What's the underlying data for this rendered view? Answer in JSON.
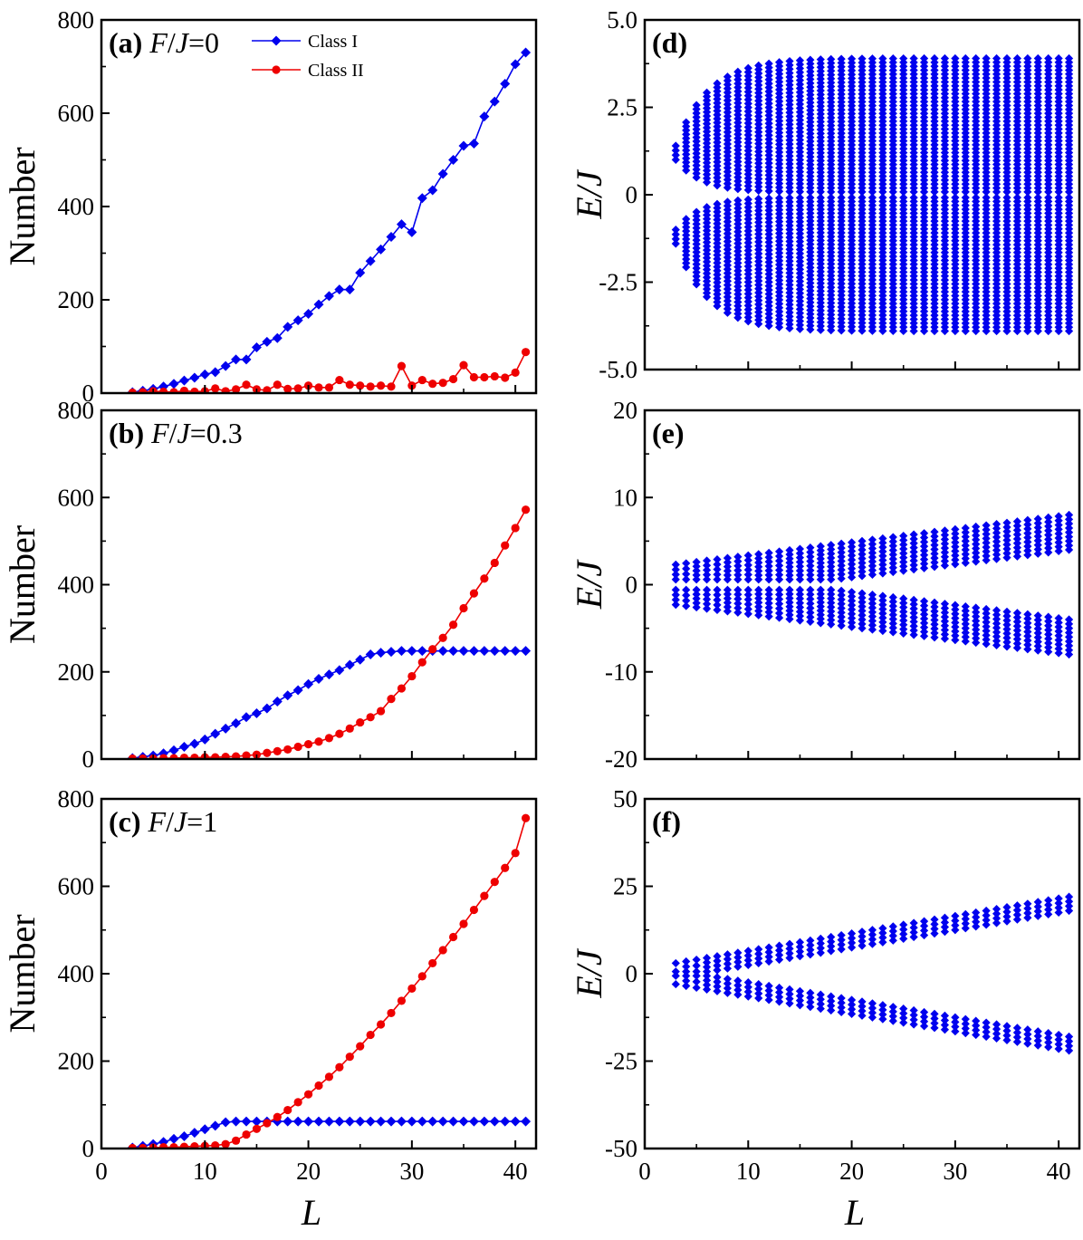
{
  "colors": {
    "class_I": "#0000ee",
    "class_II": "#ee0000",
    "spectrum": "#0000ee",
    "axes": "#000000"
  },
  "chart_data": [
    {
      "panel": "a",
      "type": "line",
      "param_label": "(a)",
      "param_text": "F/J=0",
      "ylabel": "Number",
      "xlim": [
        0,
        42
      ],
      "ylim": [
        0,
        800
      ],
      "xticks": [
        0,
        10,
        20,
        30,
        40
      ],
      "yticks": [
        0,
        200,
        400,
        600,
        800
      ],
      "legend": {
        "placement": "top-center",
        "entries": [
          "Class I",
          "Class II"
        ]
      },
      "x": [
        3,
        4,
        5,
        6,
        7,
        8,
        9,
        10,
        11,
        12,
        13,
        14,
        15,
        16,
        17,
        18,
        19,
        20,
        21,
        22,
        23,
        24,
        25,
        26,
        27,
        28,
        29,
        30,
        31,
        32,
        33,
        34,
        35,
        36,
        37,
        38,
        39,
        40,
        41
      ],
      "series": [
        {
          "name": "Class I",
          "marker": "diamond",
          "values": [
            2,
            5,
            9,
            14,
            20,
            27,
            33,
            40,
            45,
            58,
            72,
            72,
            98,
            110,
            118,
            142,
            156,
            170,
            190,
            208,
            222,
            222,
            258,
            283,
            308,
            335,
            362,
            345,
            418,
            435,
            470,
            500,
            530,
            535,
            593,
            625,
            663,
            705,
            730
          ]
        },
        {
          "name": "Class II",
          "marker": "circle",
          "values": [
            1,
            2,
            4,
            3,
            2,
            5,
            3,
            4,
            10,
            4,
            8,
            18,
            8,
            6,
            18,
            9,
            10,
            16,
            12,
            12,
            28,
            18,
            16,
            14,
            16,
            14,
            58,
            16,
            28,
            20,
            22,
            30,
            60,
            34,
            34,
            36,
            33,
            44,
            88
          ]
        }
      ]
    },
    {
      "panel": "b",
      "type": "line",
      "param_label": "(b)",
      "param_text": "F/J=0.3",
      "ylabel": "Number",
      "xlim": [
        0,
        42
      ],
      "ylim": [
        0,
        800
      ],
      "xticks": [
        0,
        10,
        20,
        30,
        40
      ],
      "yticks": [
        0,
        200,
        400,
        600,
        800
      ],
      "x": [
        3,
        4,
        5,
        6,
        7,
        8,
        9,
        10,
        11,
        12,
        13,
        14,
        15,
        16,
        17,
        18,
        19,
        20,
        21,
        22,
        23,
        24,
        25,
        26,
        27,
        28,
        29,
        30,
        31,
        32,
        33,
        34,
        35,
        36,
        37,
        38,
        39,
        40,
        41
      ],
      "series": [
        {
          "name": "Class I",
          "marker": "diamond",
          "values": [
            2,
            5,
            8,
            13,
            20,
            28,
            35,
            45,
            58,
            70,
            82,
            96,
            105,
            116,
            132,
            146,
            158,
            172,
            184,
            194,
            204,
            216,
            228,
            240,
            244,
            246,
            248,
            248,
            248,
            248,
            248,
            248,
            248,
            248,
            248,
            248,
            248,
            248,
            248
          ]
        },
        {
          "name": "Class II",
          "marker": "circle",
          "values": [
            1,
            1,
            1,
            2,
            2,
            3,
            3,
            4,
            4,
            5,
            6,
            8,
            10,
            14,
            18,
            22,
            28,
            34,
            40,
            48,
            58,
            70,
            84,
            96,
            110,
            138,
            162,
            190,
            222,
            252,
            278,
            308,
            346,
            380,
            414,
            450,
            490,
            530,
            572
          ]
        }
      ]
    },
    {
      "panel": "c",
      "type": "line",
      "param_label": "(c)",
      "param_text": "F/J=1",
      "ylabel": "Number",
      "xlabel": "L",
      "xlim": [
        0,
        42
      ],
      "ylim": [
        0,
        800
      ],
      "xticks": [
        0,
        10,
        20,
        30,
        40
      ],
      "yticks": [
        0,
        200,
        400,
        600,
        800
      ],
      "x": [
        3,
        4,
        5,
        6,
        7,
        8,
        9,
        10,
        11,
        12,
        13,
        14,
        15,
        16,
        17,
        18,
        19,
        20,
        21,
        22,
        23,
        24,
        25,
        26,
        27,
        28,
        29,
        30,
        31,
        32,
        33,
        34,
        35,
        36,
        37,
        38,
        39,
        40,
        41
      ],
      "series": [
        {
          "name": "Class I",
          "marker": "diamond",
          "values": [
            2,
            6,
            10,
            15,
            22,
            28,
            36,
            44,
            52,
            60,
            62,
            62,
            62,
            62,
            62,
            62,
            62,
            62,
            62,
            62,
            62,
            62,
            62,
            62,
            62,
            62,
            62,
            62,
            62,
            62,
            62,
            62,
            62,
            62,
            62,
            62,
            62,
            62,
            62
          ]
        },
        {
          "name": "Class II",
          "marker": "circle",
          "values": [
            1,
            1,
            2,
            3,
            3,
            4,
            5,
            6,
            7,
            10,
            18,
            32,
            45,
            58,
            72,
            88,
            106,
            124,
            144,
            164,
            186,
            210,
            234,
            260,
            284,
            310,
            338,
            366,
            394,
            424,
            454,
            484,
            514,
            546,
            578,
            610,
            642,
            676,
            756
          ]
        }
      ]
    },
    {
      "panel": "d",
      "type": "scatter",
      "param_label": "(d)",
      "ylabel": "E/J",
      "xlim": [
        0,
        42
      ],
      "ylim": [
        -5,
        5
      ],
      "xticks": [
        0,
        10,
        20,
        30,
        40
      ],
      "yticks": [
        -5.0,
        -2.5,
        0,
        2.5,
        5.0
      ],
      "ytick_labels": [
        "-5.0",
        "-2.5",
        "0",
        "2.5",
        "5.0"
      ],
      "x_range": [
        3,
        41
      ],
      "outer_bound_min": 1.4,
      "outer_bound_max": 3.9,
      "inner_gap_start": 1.0,
      "inner_gap_end": 0.08,
      "gradient": 0
    },
    {
      "panel": "e",
      "type": "scatter",
      "param_label": "(e)",
      "ylabel": "E/J",
      "xlim": [
        0,
        42
      ],
      "ylim": [
        -20,
        20
      ],
      "xticks": [
        0,
        10,
        20,
        30,
        40
      ],
      "yticks": [
        -20,
        -10,
        0,
        10,
        20
      ],
      "ytick_labels": [
        "-20",
        "-10",
        "0",
        "10",
        "20"
      ],
      "x_range": [
        3,
        41
      ],
      "outer_bound_min": 1.5,
      "outer_bound_max": 2.0,
      "inner_gap_start": 0.6,
      "inner_gap_end": 0.6,
      "gradient": 0.3
    },
    {
      "panel": "f",
      "type": "scatter",
      "param_label": "(f)",
      "ylabel": "E/J",
      "xlabel": "L",
      "xlim": [
        0,
        42
      ],
      "ylim": [
        -50,
        50
      ],
      "xticks": [
        0,
        10,
        20,
        30,
        40
      ],
      "yticks": [
        -50,
        -25,
        0,
        25,
        50
      ],
      "ytick_labels": [
        "-50",
        "-25",
        "0",
        "25",
        "50"
      ],
      "x_range": [
        3,
        41
      ],
      "outer_bound_min": 2.0,
      "outer_bound_max": 2.0,
      "inner_gap_start": 0.6,
      "inner_gap_end": 0.6,
      "gradient": 1
    }
  ]
}
